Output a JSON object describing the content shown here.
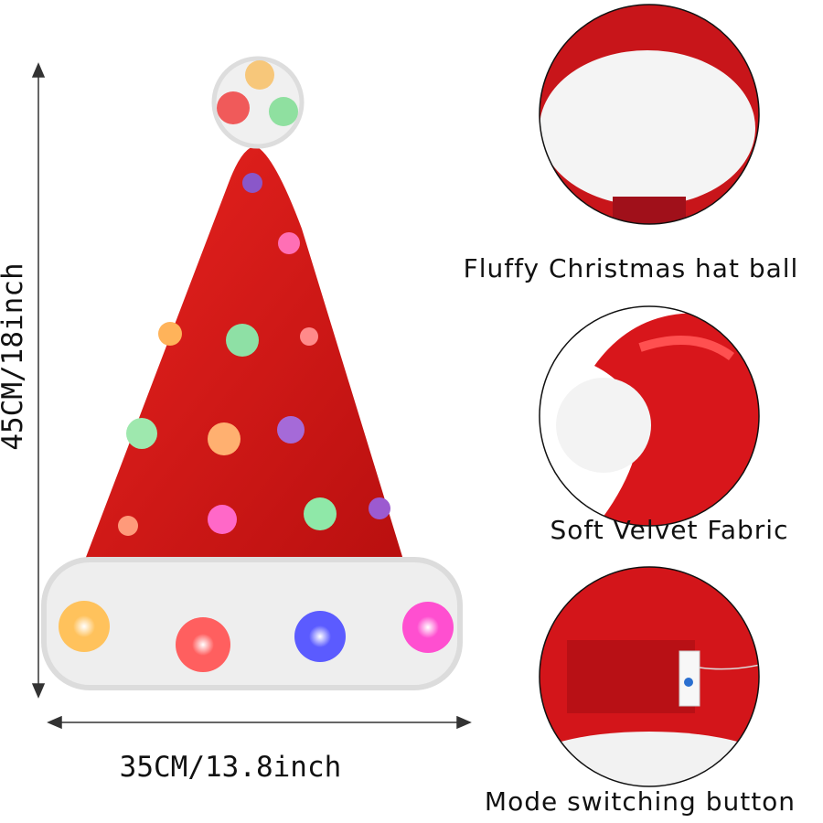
{
  "dimensions": {
    "height": "45CM/18inch",
    "width": "35CM/13.8inch"
  },
  "features": [
    {
      "caption": "Fluffy Christmas hat ball"
    },
    {
      "caption": "Soft Velvet Fabric"
    },
    {
      "caption": "Mode switching button"
    }
  ]
}
